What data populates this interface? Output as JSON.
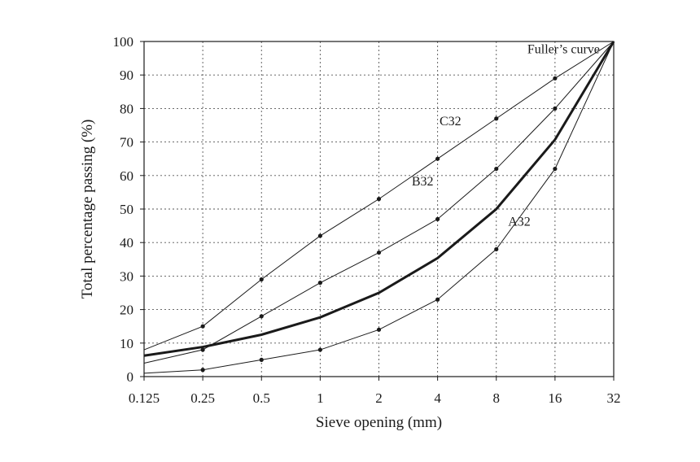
{
  "chart_data": {
    "type": "line",
    "title": "",
    "xlabel": "Sieve opening (mm)",
    "ylabel": "Total percentage passing (%)",
    "x_scale": "log2",
    "x_ticks": [
      "0.125",
      "0.25",
      "0.5",
      "1",
      "2",
      "4",
      "8",
      "16",
      "32"
    ],
    "x_tick_values": [
      0.125,
      0.25,
      0.5,
      1,
      2,
      4,
      8,
      16,
      32
    ],
    "y_ticks": [
      0,
      10,
      20,
      30,
      40,
      50,
      60,
      70,
      80,
      90,
      100
    ],
    "xlim": [
      0.125,
      32
    ],
    "ylim": [
      0,
      100
    ],
    "grid": true,
    "series": [
      {
        "name": "A32",
        "x": [
          0.125,
          0.25,
          0.5,
          1,
          2,
          4,
          8,
          16,
          32
        ],
        "values": [
          1,
          2,
          5,
          8,
          14,
          23,
          38,
          62,
          100
        ],
        "markers": [
          false,
          true,
          true,
          true,
          true,
          true,
          true,
          true,
          false
        ],
        "label_x": 10.5,
        "label_y": 45
      },
      {
        "name": "B32",
        "x": [
          0.125,
          0.25,
          0.5,
          1,
          2,
          4,
          8,
          16,
          32
        ],
        "values": [
          4,
          8,
          18,
          28,
          37,
          47,
          62,
          80,
          100
        ],
        "markers": [
          false,
          true,
          true,
          true,
          true,
          true,
          true,
          true,
          false
        ],
        "label_x": 3.35,
        "label_y": 57
      },
      {
        "name": "C32",
        "x": [
          0.125,
          0.25,
          0.5,
          1,
          2,
          4,
          8,
          16,
          32
        ],
        "values": [
          8,
          15,
          29,
          42,
          53,
          65,
          77,
          89,
          100
        ],
        "markers": [
          false,
          true,
          true,
          true,
          true,
          true,
          true,
          true,
          false
        ],
        "label_x": 4.65,
        "label_y": 75
      },
      {
        "name": "Fuller’s curve",
        "x": [
          0.125,
          0.25,
          0.5,
          1,
          2,
          4,
          8,
          16,
          32
        ],
        "values": [
          6.25,
          8.84,
          12.5,
          17.68,
          25,
          35.36,
          50,
          70.71,
          100
        ],
        "markers": [
          false,
          false,
          false,
          false,
          false,
          false,
          false,
          false,
          false
        ],
        "bold": true,
        "label_x": 17.7,
        "label_y": 96.5
      }
    ]
  }
}
